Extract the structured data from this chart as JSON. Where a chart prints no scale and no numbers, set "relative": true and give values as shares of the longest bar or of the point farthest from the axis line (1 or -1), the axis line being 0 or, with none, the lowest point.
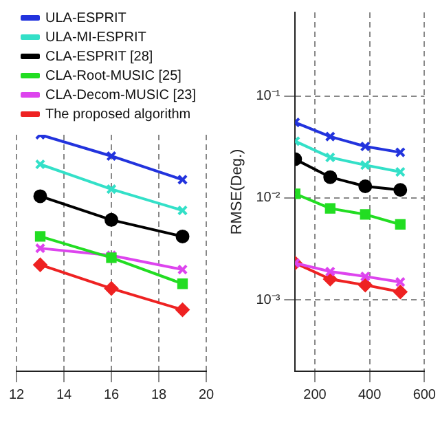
{
  "chart_data": [
    {
      "type": "line",
      "x": [
        13,
        16,
        19
      ],
      "xlim": [
        12,
        20
      ],
      "xticks": [
        12,
        14,
        16,
        18,
        20
      ],
      "relative": true,
      "grid": "x",
      "legend": "top",
      "line_style": "solid",
      "series": [
        {
          "name": "ULA-ESPRIT",
          "color": "#2233dd",
          "marker": "cross",
          "values": [
            1,
            0.91,
            0.81
          ]
        },
        {
          "name": "ULA-MI-ESPRIT",
          "color": "#33e0c8",
          "marker": "cross",
          "values": [
            0.875,
            0.77,
            0.68
          ]
        },
        {
          "name": "CLA-ESPRIT [28]",
          "color": "#000000",
          "marker": "circle",
          "values": [
            0.74,
            0.64,
            0.57
          ]
        },
        {
          "name": "CLA-Root-MUSIC [25]",
          "color": "#22dd22",
          "marker": "square",
          "values": [
            0.57,
            0.48,
            0.37
          ]
        },
        {
          "name": "CLA-Decom-MUSIC [23]",
          "color": "#dd44ee",
          "marker": "cross",
          "values": [
            0.52,
            0.49,
            0.43
          ]
        },
        {
          "name": "The proposed algorithm",
          "color": "#ee2222",
          "marker": "diamond",
          "values": [
            0.45,
            0.35,
            0.26
          ]
        }
      ]
    },
    {
      "type": "line",
      "x": [
        128,
        256,
        384,
        512
      ],
      "xlim": [
        128,
        600
      ],
      "xticks": [
        200,
        400,
        600
      ],
      "log": "y",
      "ylim": [
        0.0002,
        0.66
      ],
      "yticks": [
        {
          "value": 0.001,
          "label": "10⁻³"
        },
        {
          "value": 0.01,
          "label": "10⁻²"
        },
        {
          "value": 0.1,
          "label": "10⁻¹"
        }
      ],
      "ylabel": "RMSE(Deg.)",
      "grid": true,
      "line_style": "solid",
      "series": [
        {
          "color": "#2233dd",
          "marker": "cross",
          "values": [
            0.055,
            0.04,
            0.032,
            0.028
          ]
        },
        {
          "color": "#33e0c8",
          "marker": "cross",
          "values": [
            0.036,
            0.025,
            0.021,
            0.018
          ]
        },
        {
          "color": "#000000",
          "marker": "circle",
          "values": [
            0.024,
            0.016,
            0.013,
            0.012
          ]
        },
        {
          "color": "#22dd22",
          "marker": "square",
          "values": [
            0.011,
            0.0079,
            0.0069,
            0.0055
          ]
        },
        {
          "color": "#dd44ee",
          "marker": "cross",
          "values": [
            0.0023,
            0.0019,
            0.0017,
            0.0015
          ]
        },
        {
          "color": "#ee2222",
          "marker": "diamond",
          "values": [
            0.0023,
            0.0016,
            0.0014,
            0.0012
          ]
        }
      ]
    }
  ]
}
